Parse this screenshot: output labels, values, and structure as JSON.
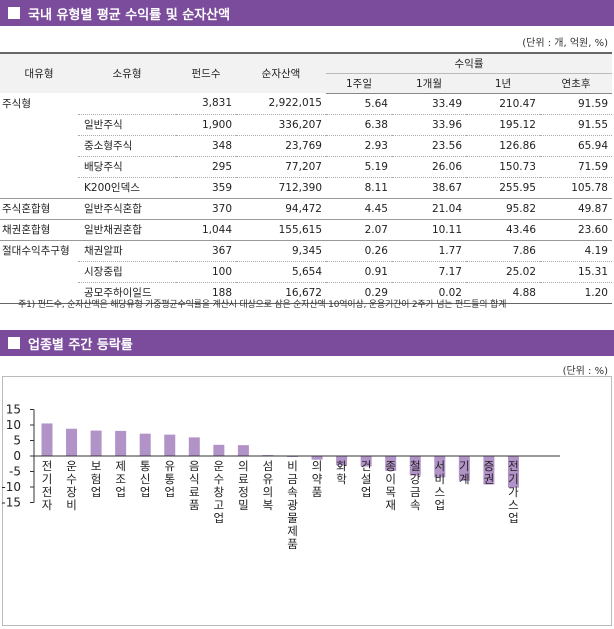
{
  "section1": {
    "title": "국내 유형별 평균 수익률 및 순자산액",
    "unit": "(단위 : 개, 억원, %)"
  },
  "table": {
    "headers": {
      "category": "대유형",
      "subcategory": "소유형",
      "funds": "펀드수",
      "nav": "순자산액",
      "returns": "수익률",
      "w1": "1주일",
      "m1": "1개월",
      "y1": "1년",
      "ytd": "연초후"
    },
    "rows": [
      [
        "주식형",
        "",
        "3,831",
        "2,922,015",
        "5.64",
        "33.49",
        "210.47",
        "91.59"
      ],
      [
        "",
        "일반주식",
        "1,900",
        "336,207",
        "6.38",
        "33.96",
        "195.12",
        "91.55"
      ],
      [
        "",
        "중소형주식",
        "348",
        "23,769",
        "2.93",
        "23.56",
        "126.86",
        "65.94"
      ],
      [
        "",
        "배당주식",
        "295",
        "77,207",
        "5.19",
        "26.06",
        "150.73",
        "71.59"
      ],
      [
        "",
        "K200인덱스",
        "359",
        "712,390",
        "8.11",
        "38.67",
        "255.95",
        "105.78"
      ],
      [
        "주식혼합형",
        "일반주식혼합",
        "370",
        "94,472",
        "4.45",
        "21.04",
        "95.82",
        "49.87"
      ],
      [
        "채권혼합형",
        "일반채권혼합",
        "1,044",
        "155,615",
        "2.07",
        "10.11",
        "43.46",
        "23.60"
      ],
      [
        "절대수익추구형",
        "채권알파",
        "367",
        "9,345",
        "0.26",
        "1.77",
        "7.86",
        "4.19"
      ],
      [
        "",
        "시장중립",
        "100",
        "5,654",
        "0.91",
        "7.17",
        "25.02",
        "15.31"
      ],
      [
        "",
        "공모주하이일드",
        "188",
        "16,672",
        "0.29",
        "0.02",
        "4.88",
        "1.20"
      ]
    ]
  },
  "note": "주1) 펀드수, 순자산액은 해당유형 가중평균수익률을 계산시 대상으로 삼은 순자산액 10억이상, 운용기간이 2주가 넘는 펀드들의 합계",
  "section2": {
    "title": "업종별 주간 등락률",
    "unit": "(단위 : %)"
  },
  "chart_data": {
    "type": "bar",
    "categories": [
      "전기전자",
      "운수장비",
      "보험업",
      "제조업",
      "통신업",
      "유통업",
      "음식료품",
      "운수창고업",
      "의료정밀",
      "섬유의복",
      "비금속광물제품",
      "의약품",
      "화학",
      "건설업",
      "종이목재",
      "철강금속",
      "서비스업",
      "기계",
      "증권",
      "전기가스업"
    ],
    "values": [
      10.5,
      8.8,
      8.2,
      8.1,
      7.2,
      6.9,
      6.0,
      3.6,
      3.5,
      0.3,
      -0.1,
      -1.2,
      -3.0,
      -3.4,
      -4.8,
      -6.3,
      -6.9,
      -8.0,
      -9.2,
      -10.2
    ],
    "ylim": [
      -15,
      15
    ],
    "yticks": [
      15,
      10,
      5,
      0,
      -5,
      -10,
      -15
    ],
    "bar_color": "#b293c8"
  }
}
